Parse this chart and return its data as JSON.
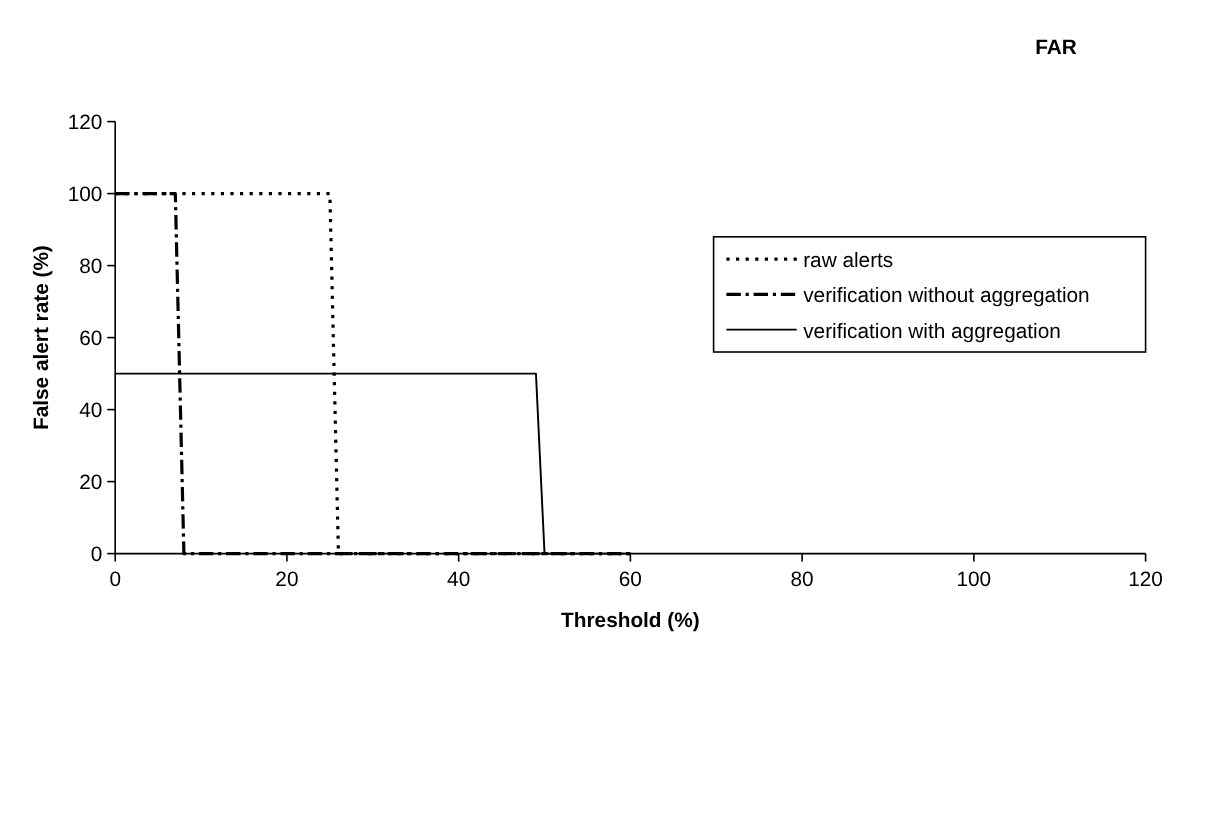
{
  "chart_data": {
    "type": "line",
    "title": "FAR",
    "xlabel": "Threshold (%)",
    "ylabel": "False alert rate (%)",
    "xlim": [
      0,
      120
    ],
    "xticks": [
      0,
      20,
      40,
      60,
      80,
      100,
      120
    ],
    "ylim": [
      0,
      120
    ],
    "yticks": [
      0,
      20,
      40,
      60,
      80,
      100,
      120
    ],
    "grid": false,
    "legend": "right",
    "marker": "none",
    "series": [
      {
        "name": "raw alerts",
        "color": "#000000",
        "line_style": "dotted",
        "x": [
          0,
          25,
          26,
          60
        ],
        "values": [
          100,
          100,
          0,
          0
        ]
      },
      {
        "name": "verification without aggregation",
        "color": "#000000",
        "line_style": "dashed",
        "x": [
          0,
          7,
          8,
          60
        ],
        "values": [
          100,
          100,
          0,
          0
        ]
      },
      {
        "name": "verification with aggregation",
        "color": "#000000",
        "line_style": "solid",
        "x": [
          0,
          49,
          50,
          60
        ],
        "values": [
          50,
          50,
          0,
          0
        ]
      }
    ]
  }
}
